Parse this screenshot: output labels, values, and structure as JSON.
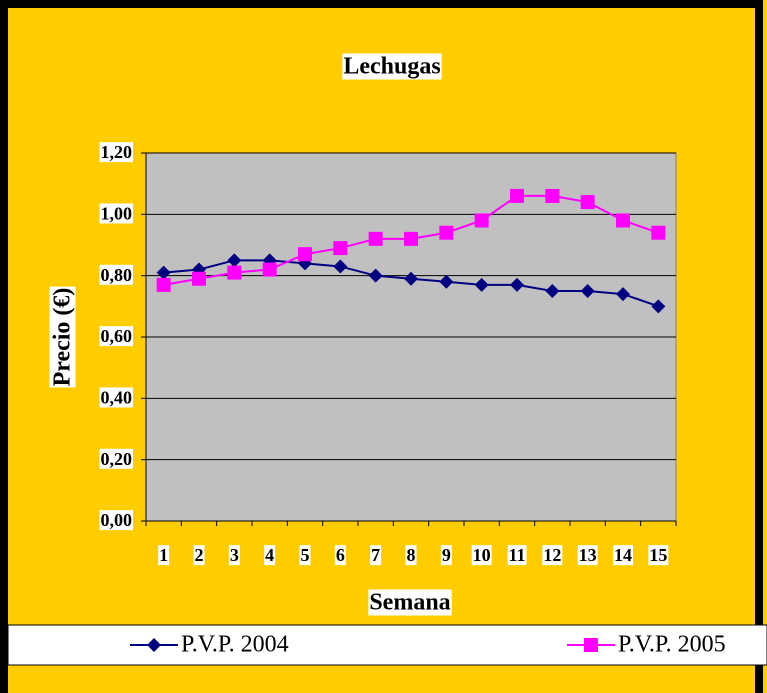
{
  "chart_data": {
    "type": "line",
    "title": "Lechugas",
    "x_label": "Semana",
    "y_label": "Precio (€)",
    "categories": [
      "1",
      "2",
      "3",
      "4",
      "5",
      "6",
      "7",
      "8",
      "9",
      "10",
      "11",
      "12",
      "13",
      "14",
      "15"
    ],
    "series": [
      {
        "name": "P.V.P. 2004",
        "color": "#000080",
        "marker": "diamond",
        "values": [
          0.81,
          0.82,
          0.85,
          0.85,
          0.84,
          0.83,
          0.8,
          0.79,
          0.78,
          0.77,
          0.77,
          0.75,
          0.75,
          0.74,
          0.7
        ]
      },
      {
        "name": "P.V.P. 2005",
        "color": "#ff00ff",
        "marker": "square",
        "values": [
          0.77,
          0.79,
          0.81,
          0.82,
          0.87,
          0.89,
          0.92,
          0.92,
          0.94,
          0.98,
          1.06,
          1.06,
          1.04,
          0.98,
          0.94
        ]
      }
    ],
    "ylim": [
      0,
      1.2
    ],
    "yticks": [
      {
        "value": 0,
        "label": "0,00"
      },
      {
        "value": 0.2,
        "label": "0,20"
      },
      {
        "value": 0.4,
        "label": "0,40"
      },
      {
        "value": 0.6,
        "label": "0,60"
      },
      {
        "value": 0.8,
        "label": "0,80"
      },
      {
        "value": 1.0,
        "label": "1,00"
      },
      {
        "value": 1.2,
        "label": "1,20"
      }
    ],
    "grid": true,
    "legend": "bottom"
  }
}
